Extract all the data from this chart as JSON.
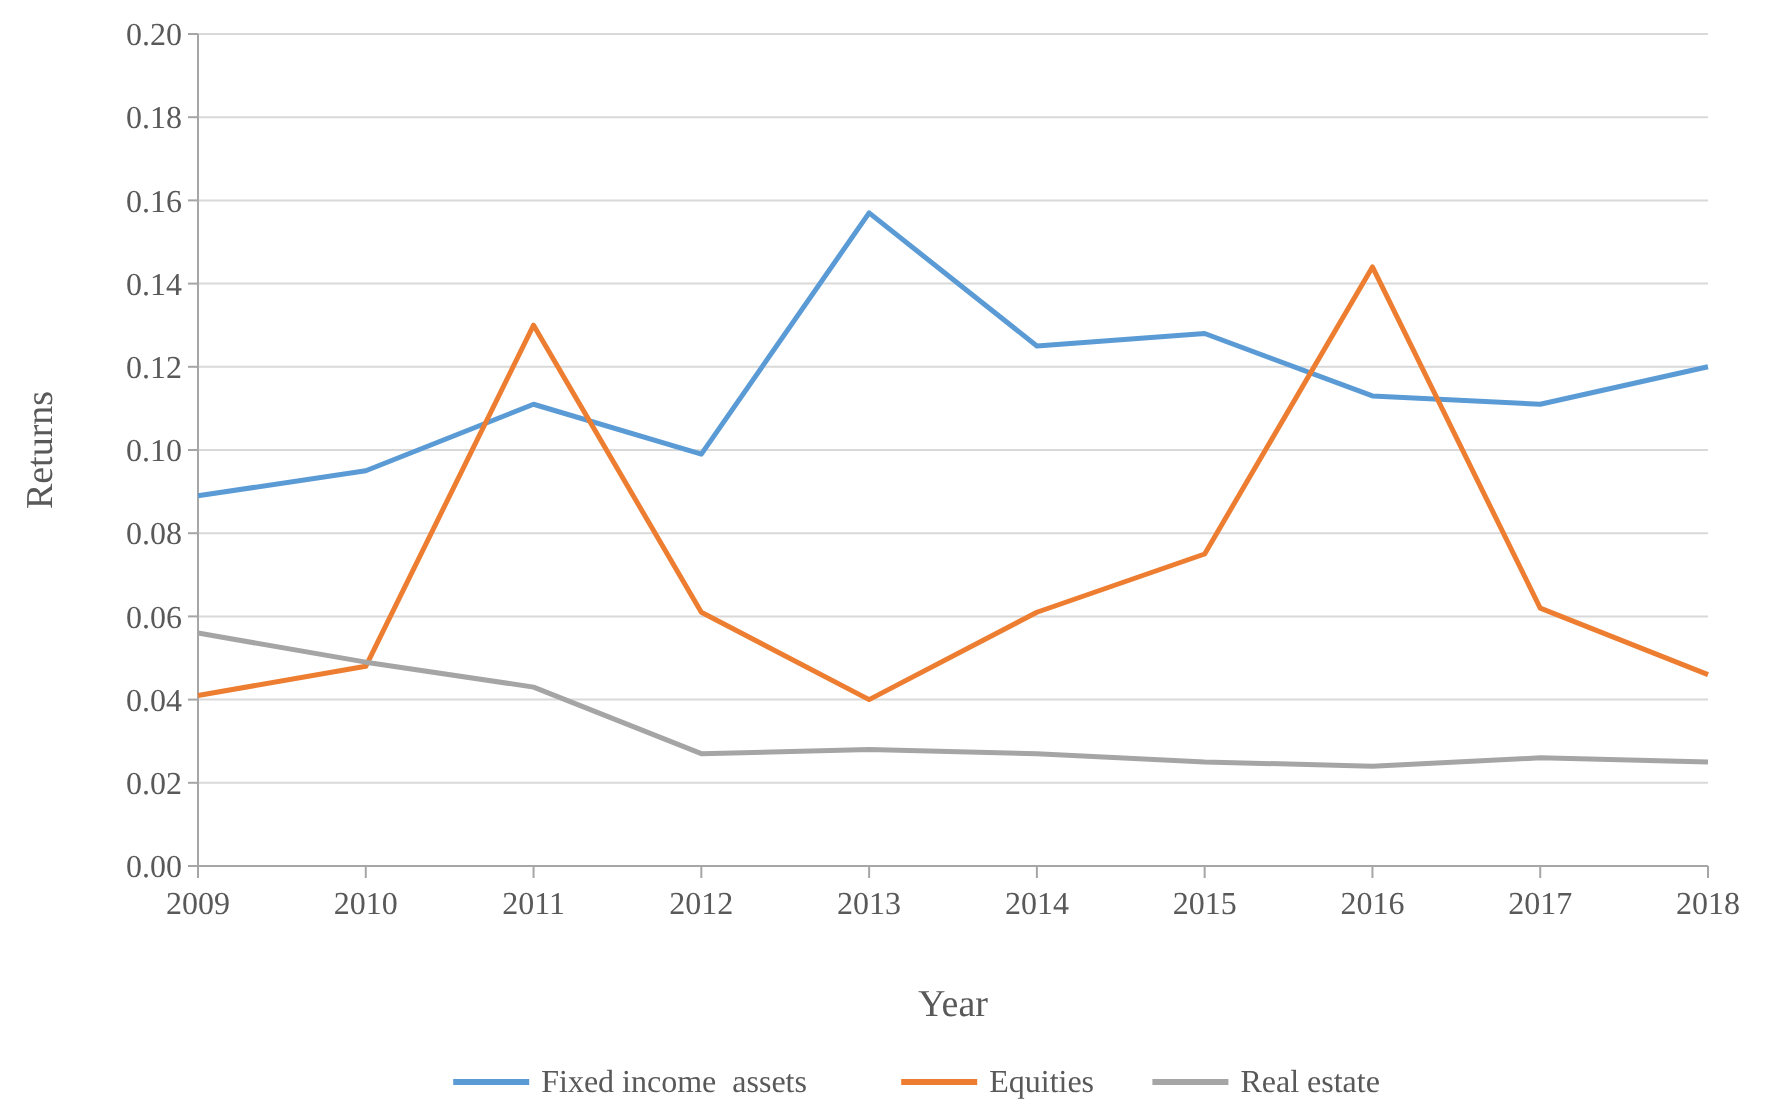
{
  "chart_data": {
    "type": "line",
    "xlabel": "Year",
    "ylabel": "Returns",
    "x": [
      2009,
      2010,
      2011,
      2012,
      2013,
      2014,
      2015,
      2016,
      2017,
      2018
    ],
    "xlim": [
      2009,
      2018
    ],
    "xticks": [
      2009,
      2010,
      2011,
      2012,
      2013,
      2014,
      2015,
      2016,
      2017,
      2018
    ],
    "ylim": [
      0,
      0.2
    ],
    "yticks": [
      {
        "value": 0,
        "label": "0.00"
      },
      {
        "value": 0.02,
        "label": "0.02"
      },
      {
        "value": 0.04,
        "label": "0.04"
      },
      {
        "value": 0.06,
        "label": "0.06"
      },
      {
        "value": 0.08,
        "label": "0.08"
      },
      {
        "value": 0.1,
        "label": "0.10"
      },
      {
        "value": 0.12,
        "label": "0.12"
      },
      {
        "value": 0.14,
        "label": "0.14"
      },
      {
        "value": 0.16,
        "label": "0.16"
      },
      {
        "value": 0.18,
        "label": "0.18"
      },
      {
        "value": 0.2,
        "label": "0.20"
      }
    ],
    "grid": "y",
    "legend": "bottom",
    "line_style": "solid",
    "series": [
      {
        "name": "Fixed income  assets",
        "color": "#5b9bd5",
        "values": [
          0.089,
          0.095,
          0.111,
          0.099,
          0.157,
          0.125,
          0.128,
          0.113,
          0.111,
          0.12
        ]
      },
      {
        "name": "Equities",
        "color": "#ed7d31",
        "values": [
          0.041,
          0.048,
          0.13,
          0.061,
          0.04,
          0.061,
          0.075,
          0.144,
          0.062,
          0.046
        ]
      },
      {
        "name": "Real estate",
        "color": "#a5a5a5",
        "values": [
          0.056,
          0.049,
          0.043,
          0.027,
          0.028,
          0.027,
          0.025,
          0.024,
          0.026,
          0.025
        ]
      }
    ]
  }
}
